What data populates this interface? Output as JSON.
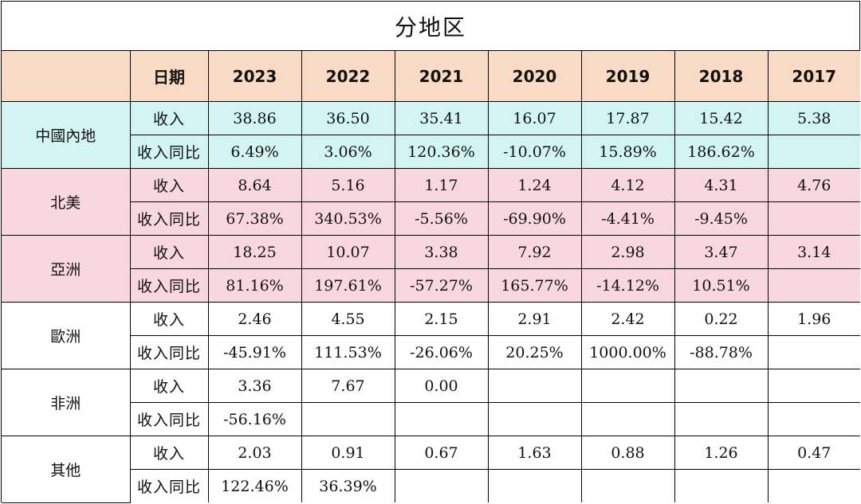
{
  "title": "分地区",
  "header": {
    "date_label": "日期",
    "years": [
      "2023",
      "2022",
      "2021",
      "2020",
      "2019",
      "2018",
      "2017"
    ]
  },
  "metrics": {
    "revenue": "收入",
    "yoy": "收入同比"
  },
  "regions": [
    {
      "name": "中國內地",
      "color": "#d2f5f3",
      "revenue": [
        "38.86",
        "36.50",
        "35.41",
        "16.07",
        "17.87",
        "15.42",
        "5.38"
      ],
      "yoy": [
        "6.49%",
        "3.06%",
        "120.36%",
        "-10.07%",
        "15.89%",
        "186.62%",
        ""
      ]
    },
    {
      "name": "北美",
      "color": "#f8d7df",
      "revenue": [
        "8.64",
        "5.16",
        "1.17",
        "1.24",
        "4.12",
        "4.31",
        "4.76"
      ],
      "yoy": [
        "67.38%",
        "340.53%",
        "-5.56%",
        "-69.90%",
        "-4.41%",
        "-9.45%",
        ""
      ]
    },
    {
      "name": "亞洲",
      "color": "#f8d7df",
      "revenue": [
        "18.25",
        "10.07",
        "3.38",
        "7.92",
        "2.98",
        "3.47",
        "3.14"
      ],
      "yoy": [
        "81.16%",
        "197.61%",
        "-57.27%",
        "165.77%",
        "-14.12%",
        "10.51%",
        ""
      ]
    },
    {
      "name": "歐洲",
      "color": "#ffffff",
      "revenue": [
        "2.46",
        "4.55",
        "2.15",
        "2.91",
        "2.42",
        "0.22",
        "1.96"
      ],
      "yoy": [
        "-45.91%",
        "111.53%",
        "-26.06%",
        "20.25%",
        "1000.00%",
        "-88.78%",
        ""
      ]
    },
    {
      "name": "非洲",
      "color": "#ffffff",
      "revenue": [
        "3.36",
        "7.67",
        "0.00",
        "",
        "",
        "",
        ""
      ],
      "yoy": [
        "-56.16%",
        "",
        "",
        "",
        "",
        "",
        ""
      ]
    },
    {
      "name": "其他",
      "color": "#ffffff",
      "revenue": [
        "2.03",
        "0.91",
        "0.67",
        "1.63",
        "0.88",
        "1.26",
        "0.47"
      ],
      "yoy": [
        "122.46%",
        "36.39%",
        "",
        "",
        "",
        "",
        ""
      ]
    }
  ]
}
